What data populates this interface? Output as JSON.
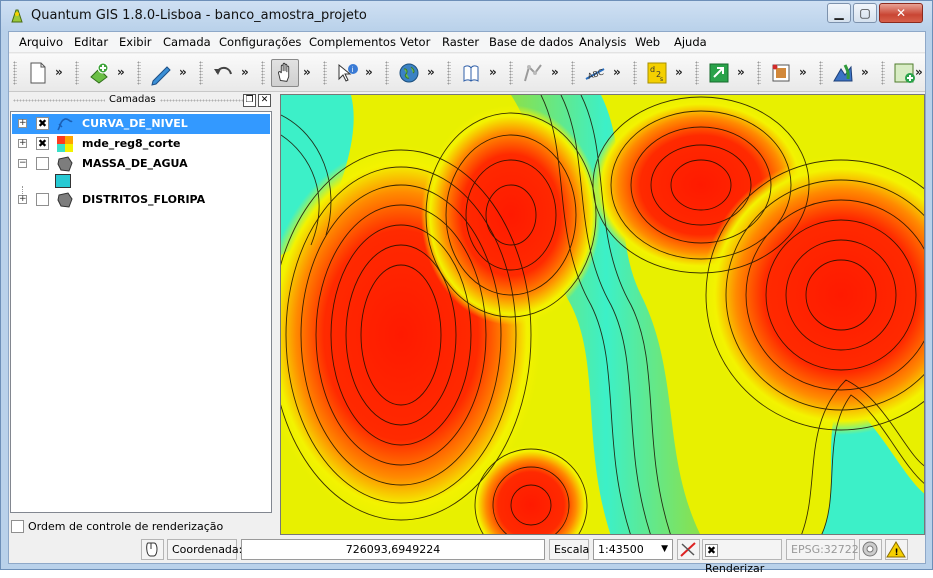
{
  "window": {
    "title": "Quantum GIS 1.8.0-Lisboa - banco_amostra_projeto",
    "controls": {
      "minimize": "▁",
      "maximize": "▢",
      "close": "✕"
    }
  },
  "menu": [
    "Arquivo",
    "Editar",
    "Exibir",
    "Camada",
    "Configurações",
    "Complementos",
    "Vetor",
    "Raster",
    "Base de dados",
    "Analysis",
    "Web",
    "Ajuda"
  ],
  "toolbar": {
    "more_glyph": "»",
    "groups": [
      {
        "icon": "new-file-icon"
      },
      {
        "icon": "add-layer-icon"
      },
      {
        "icon": "edit-pencil-icon"
      },
      {
        "icon": "undo-icon"
      },
      {
        "icon": "pan-hand-icon",
        "active": true
      },
      {
        "icon": "identify-icon"
      },
      {
        "icon": "globe-icon"
      },
      {
        "icon": "help-book-icon"
      },
      {
        "icon": "digitize-icon"
      },
      {
        "icon": "label-abc-icon"
      },
      {
        "icon": "d2s-icon"
      },
      {
        "icon": "plugin-arrow-icon"
      },
      {
        "icon": "georeferencer-icon"
      },
      {
        "icon": "vector-tools-icon"
      },
      {
        "icon": "map-plugin-icon"
      }
    ]
  },
  "layers_panel": {
    "title": "Camadas",
    "layers": [
      {
        "name": "CURVA_DE_NIVEL",
        "checked": true,
        "expand": "+",
        "icon": "contour-line-icon",
        "selected": true
      },
      {
        "name": "mde_reg8_corte",
        "checked": true,
        "expand": "+",
        "icon": "raster-icon",
        "selected": false
      },
      {
        "name": "MASSA_DE_AGUA",
        "checked": false,
        "expand": "−",
        "icon": "polygon-icon",
        "selected": false
      },
      {
        "name": "DISTRITOS_FLORIPA",
        "checked": false,
        "expand": "+",
        "icon": "polygon-icon",
        "selected": false
      }
    ],
    "legend_color": "#27c9d3",
    "render_order_label": "Ordem de controle de renderização"
  },
  "statusbar": {
    "coord_label": "Coordenada:",
    "coord_value": "726093,6949224",
    "scale_label": "Escala",
    "scale_value": "1:43500",
    "render_label": "Renderizar",
    "render_checked": true,
    "crs": "EPSG:32722"
  },
  "colors": {
    "map_high": "#ff1a00",
    "map_mid": "#f3f300",
    "map_low": "#33f0c8",
    "selection": "#3399ff"
  }
}
